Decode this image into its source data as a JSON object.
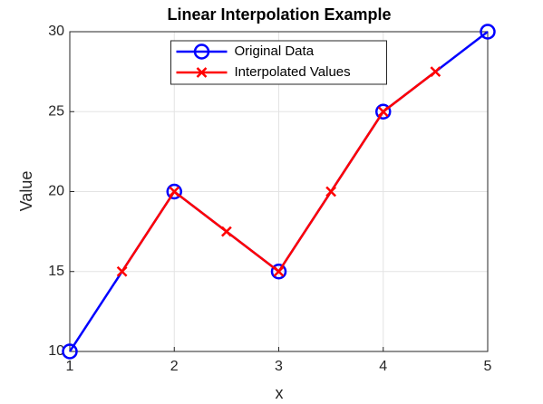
{
  "chart_data": {
    "type": "line",
    "title": "Linear Interpolation Example",
    "xlabel": "x",
    "ylabel": "Value",
    "series": [
      {
        "name": "Original Data",
        "color": "#0000ff",
        "marker": "o",
        "x": [
          1,
          2,
          3,
          4,
          5
        ],
        "values": [
          10,
          20,
          15,
          25,
          30
        ]
      },
      {
        "name": "Interpolated Values",
        "color": "#ff0000",
        "marker": "x",
        "x": [
          1.5,
          2,
          2.5,
          3,
          3.5,
          4,
          4.5
        ],
        "values": [
          15,
          20,
          17.5,
          15,
          20,
          25,
          27.5
        ]
      }
    ],
    "xlim": [
      1,
      5
    ],
    "xticks": [
      1,
      2,
      3,
      4,
      5
    ],
    "ylim": [
      10,
      30
    ],
    "yticks": [
      10,
      15,
      20,
      25,
      30
    ],
    "grid": true,
    "legend": "north"
  }
}
